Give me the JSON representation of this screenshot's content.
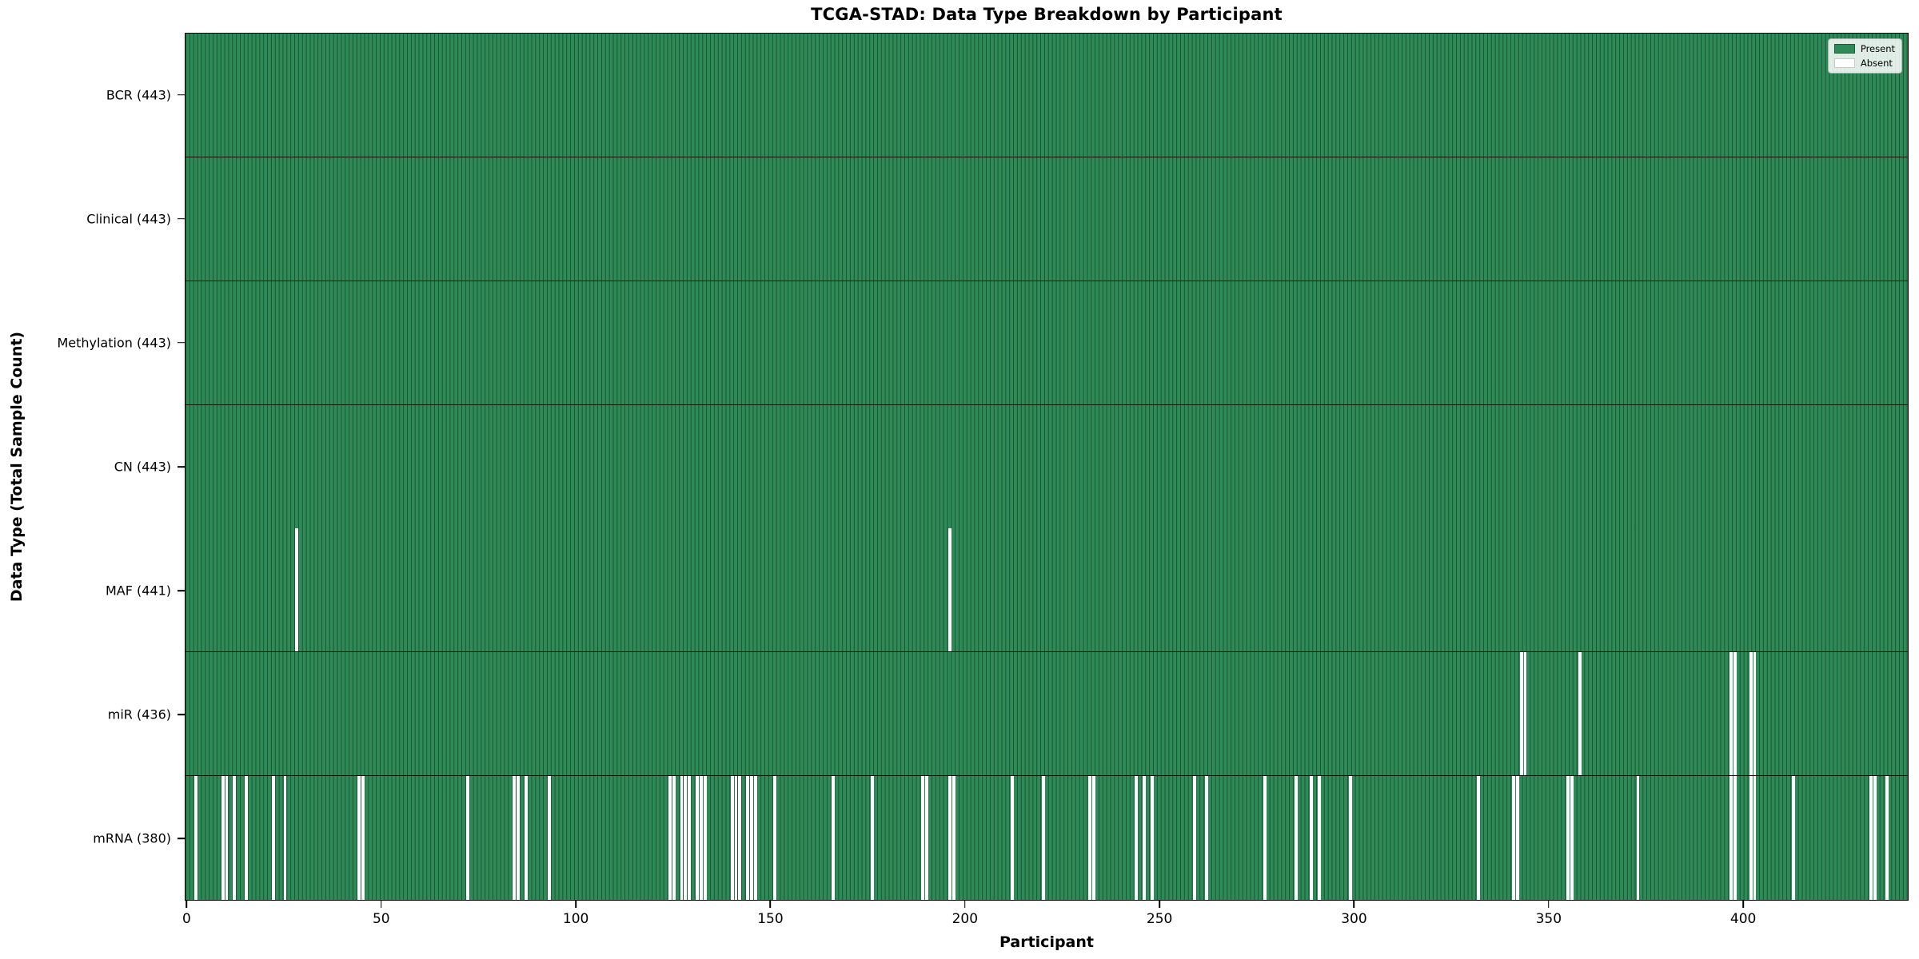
{
  "chart_data": {
    "type": "heatmap",
    "title": "TCGA-STAD: Data Type Breakdown by Participant",
    "xlabel": "Participant",
    "ylabel": "Data Type (Total Sample Count)",
    "x_range": [
      0,
      443
    ],
    "x_ticks": [
      0,
      50,
      100,
      150,
      200,
      250,
      300,
      350,
      400
    ],
    "grid": false,
    "legend": [
      "Present",
      "Absent"
    ],
    "legend_position": "upper right",
    "colors": {
      "present": "#2e8b57",
      "absent": "#ffffff",
      "cell_edge": "#1e5c3a",
      "row_separator": "#101510"
    },
    "rows": [
      {
        "label": "BCR (443)",
        "name": "BCR",
        "total_samples": 443,
        "absent_participants": []
      },
      {
        "label": "Clinical (443)",
        "name": "Clinical",
        "total_samples": 443,
        "absent_participants": []
      },
      {
        "label": "Methylation (443)",
        "name": "Methylation",
        "total_samples": 443,
        "absent_participants": []
      },
      {
        "label": "CN (443)",
        "name": "CN",
        "total_samples": 443,
        "absent_participants": []
      },
      {
        "label": "MAF (441)",
        "name": "MAF",
        "total_samples": 441,
        "absent_participants": [
          28,
          196
        ]
      },
      {
        "label": "miR (436)",
        "name": "miR",
        "total_samples": 436,
        "absent_participants": [
          343,
          344,
          358,
          397,
          398,
          402,
          403
        ]
      },
      {
        "label": "mRNA (380)",
        "name": "mRNA",
        "total_samples": 380,
        "absent_participants": [
          2,
          9,
          10,
          12,
          15,
          22,
          25,
          44,
          45,
          72,
          84,
          85,
          87,
          93,
          124,
          125,
          127,
          128,
          129,
          131,
          132,
          133,
          140,
          141,
          142,
          144,
          145,
          146,
          151,
          166,
          176,
          189,
          190,
          196,
          197,
          212,
          220,
          232,
          233,
          244,
          246,
          248,
          259,
          262,
          277,
          285,
          289,
          291,
          299,
          332,
          341,
          342,
          355,
          356,
          373,
          397,
          398,
          402,
          403,
          413,
          433,
          434,
          437
        ]
      }
    ]
  }
}
